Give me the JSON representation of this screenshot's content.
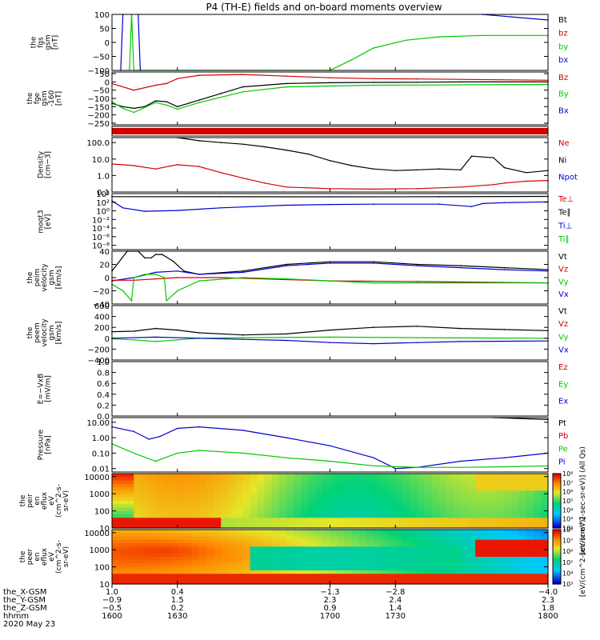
{
  "title": "P4 (TH-E) fields and on-board moments overview",
  "colors": {
    "black": "#000000",
    "red": "#d00000",
    "green": "#00c800",
    "blue": "#0000d0",
    "axis": "#000000"
  },
  "chart_data": [
    {
      "id": "fgs",
      "type": "line",
      "ylabel": [
        "the",
        "fgs",
        "gsm",
        "[nT]"
      ],
      "ylim": [
        -100,
        100
      ],
      "yscale": "linear",
      "yticks": [
        -100,
        -50,
        0,
        50,
        100
      ],
      "ytick_labels": [
        "−100",
        "−50",
        "0",
        "50",
        "100"
      ],
      "legend": [
        {
          "name": "Bt",
          "color": "black"
        },
        {
          "name": "bz",
          "color": "red"
        },
        {
          "name": "by",
          "color": "green"
        },
        {
          "name": "bx",
          "color": "blue"
        }
      ],
      "series": [
        {
          "name": "bx",
          "color": "blue",
          "x": [
            1604,
            1605,
            1606,
            1611,
            1612,
            1613,
            1750,
            1770,
            1800
          ],
          "y": [
            -100,
            100,
            null,
            null,
            100,
            -100,
            null,
            100,
            80
          ]
        },
        {
          "name": "by",
          "color": "green",
          "x": [
            1608,
            1609,
            1610,
            1700,
            1710,
            1720,
            1735,
            1750,
            1770,
            1800
          ],
          "y": [
            -100,
            100,
            -100,
            -100,
            -62,
            -20,
            8,
            20,
            25,
            25
          ]
        }
      ]
    },
    {
      "id": "fge",
      "type": "line",
      "ylabel": [
        "the",
        "fge",
        "gsm",
        "-160",
        "[nT]"
      ],
      "ylim": [
        -260,
        60
      ],
      "yscale": "linear",
      "yticks": [
        -250,
        -200,
        -150,
        -100,
        -50,
        0,
        50
      ],
      "ytick_labels": [
        "−250",
        "−200",
        "−150",
        "−100",
        "−50",
        "0",
        "50"
      ],
      "legend": [
        {
          "name": "Bz",
          "color": "red"
        },
        {
          "name": "By",
          "color": "green"
        },
        {
          "name": "Bx",
          "color": "blue"
        }
      ],
      "series": [
        {
          "name": "bt",
          "color": "black",
          "x": [
            1600,
            1605,
            1610,
            1615,
            1620,
            1625,
            1630,
            1640,
            1650,
            1660,
            1680,
            1700,
            1720,
            1740,
            1760,
            1800
          ],
          "y": [
            -130,
            -150,
            -160,
            -150,
            -115,
            -120,
            -150,
            -110,
            -70,
            -30,
            -10,
            -5,
            -3,
            -2,
            0,
            0
          ]
        },
        {
          "name": "Bz",
          "color": "red",
          "x": [
            1600,
            1610,
            1620,
            1625,
            1630,
            1640,
            1660,
            1680,
            1700,
            1720,
            1740,
            1800
          ],
          "y": [
            -10,
            -50,
            -20,
            -10,
            20,
            40,
            45,
            35,
            25,
            20,
            18,
            10
          ]
        },
        {
          "name": "By",
          "color": "green",
          "x": [
            1600,
            1605,
            1610,
            1615,
            1620,
            1625,
            1630,
            1640,
            1660,
            1680,
            1720,
            1800
          ],
          "y": [
            -120,
            -160,
            -185,
            -155,
            -125,
            -140,
            -165,
            -125,
            -60,
            -30,
            -20,
            -15
          ]
        }
      ]
    },
    {
      "id": "band",
      "type": "bar",
      "ylabel": [],
      "band_color": "red"
    },
    {
      "id": "density",
      "type": "line",
      "ylabel": [
        "Density",
        "[cm−3]"
      ],
      "ylim": [
        0.1,
        200
      ],
      "yscale": "log",
      "yticks": [
        0.1,
        1,
        10,
        100
      ],
      "ytick_labels": [
        "0.1",
        "1.0",
        "10.0",
        "100.0"
      ],
      "legend": [
        {
          "name": "Ne",
          "color": "red"
        },
        {
          "name": "Ni",
          "color": "black"
        },
        {
          "name": "Npot",
          "color": "blue"
        }
      ],
      "series": [
        {
          "name": "Ni",
          "color": "black",
          "x": [
            1630,
            1640,
            1650,
            1660,
            1670,
            1680,
            1690,
            1700,
            1710,
            1720,
            1730,
            1740,
            1750,
            1760,
            1765,
            1775,
            1780,
            1790,
            1800
          ],
          "y": [
            200,
            130,
            100,
            80,
            55,
            35,
            20,
            8,
            4,
            2.5,
            2,
            2.2,
            2.5,
            2.2,
            15,
            12,
            3,
            1.5,
            2
          ]
        },
        {
          "name": "Ne",
          "color": "red",
          "x": [
            1600,
            1610,
            1620,
            1630,
            1640,
            1650,
            1660,
            1670,
            1680,
            1700,
            1720,
            1740,
            1760,
            1775,
            1780,
            1790,
            1800
          ],
          "y": [
            5,
            4,
            2.5,
            4.5,
            3.5,
            1.5,
            0.7,
            0.35,
            0.2,
            0.16,
            0.15,
            0.16,
            0.2,
            0.28,
            0.35,
            0.45,
            0.5
          ]
        }
      ]
    },
    {
      "id": "temp",
      "type": "line",
      "ylabel": [
        "moqt3",
        "[eV]"
      ],
      "ylim": [
        1e-09,
        10000.0
      ],
      "yscale": "log",
      "yticks": [
        1e-08,
        1e-06,
        0.0001,
        0.01,
        1,
        100,
        10000
      ],
      "ytick_labels": [
        "10⁻⁸",
        "10⁻⁶",
        "10⁻⁴",
        "10⁻²",
        "10⁰",
        "10²",
        "10⁴"
      ],
      "legend": [
        {
          "name": "Te⊥",
          "color": "red"
        },
        {
          "name": "Te∥",
          "color": "black"
        },
        {
          "name": "Ti⊥",
          "color": "blue"
        },
        {
          "name": "Ti∥",
          "color": "green"
        }
      ],
      "series": [
        {
          "name": "Te",
          "color": "black",
          "x": [
            1600,
            1650,
            1700,
            1750,
            1800
          ],
          "y": [
            2000,
            1900,
            1800,
            1900,
            2200
          ]
        },
        {
          "name": "Ti",
          "color": "blue",
          "x": [
            1600,
            1605,
            1615,
            1630,
            1650,
            1680,
            1700,
            1720,
            1750,
            1765,
            1770,
            1780,
            1800
          ],
          "y": [
            200,
            5,
            0.8,
            1.2,
            5,
            20,
            30,
            35,
            35,
            10,
            50,
            80,
            120
          ]
        }
      ]
    },
    {
      "id": "peim",
      "type": "line",
      "ylabel": [
        "the",
        "peim",
        "velocity",
        "gsm",
        "[km/s]"
      ],
      "ylim": [
        -40,
        40
      ],
      "yscale": "linear",
      "yticks": [
        -40,
        -20,
        0,
        20,
        40
      ],
      "ytick_labels": [
        "−40",
        "−20",
        "0",
        "20",
        "40"
      ],
      "legend": [
        {
          "name": "Vt",
          "color": "black"
        },
        {
          "name": "Vz",
          "color": "red"
        },
        {
          "name": "Vy",
          "color": "green"
        },
        {
          "name": "Vx",
          "color": "blue"
        }
      ],
      "series": [
        {
          "name": "Vt",
          "color": "black",
          "x": [
            1600,
            1607,
            1612,
            1615,
            1618,
            1620,
            1623,
            1628,
            1633,
            1640,
            1660,
            1680,
            1700,
            1720,
            1740,
            1760,
            1780,
            1800
          ],
          "y": [
            10,
            40,
            40,
            30,
            30,
            35,
            35,
            25,
            10,
            5,
            10,
            20,
            24,
            24,
            20,
            18,
            15,
            12
          ]
        },
        {
          "name": "Vx",
          "color": "blue",
          "x": [
            1600,
            1610,
            1620,
            1630,
            1640,
            1660,
            1680,
            1700,
            1720,
            1740,
            1760,
            1780,
            1800
          ],
          "y": [
            -5,
            0,
            8,
            10,
            5,
            8,
            18,
            22,
            22,
            18,
            15,
            12,
            10
          ]
        },
        {
          "name": "Vz",
          "color": "red",
          "x": [
            1600,
            1610,
            1620,
            1630,
            1650,
            1680,
            1700,
            1740,
            1800
          ],
          "y": [
            -4,
            -4,
            -2,
            0,
            0,
            -3,
            -5,
            -6,
            -8
          ]
        },
        {
          "name": "Vy",
          "color": "green",
          "x": [
            1600,
            1605,
            1609,
            1610,
            1615,
            1620,
            1624,
            1625,
            1630,
            1640,
            1660,
            1680,
            1700,
            1720,
            1760,
            1800
          ],
          "y": [
            -10,
            -20,
            -35,
            0,
            5,
            5,
            0,
            -35,
            -20,
            -5,
            0,
            -2,
            -5,
            -8,
            -8,
            -8
          ]
        }
      ]
    },
    {
      "id": "peem",
      "type": "line",
      "ylabel": [
        "the",
        "peem",
        "velocity",
        "gsm",
        "[km/s]"
      ],
      "ylim": [
        -400,
        600
      ],
      "yscale": "linear",
      "yticks": [
        -400,
        -200,
        0,
        200,
        400,
        600
      ],
      "ytick_labels": [
        "−400",
        "−200",
        "0",
        "200",
        "400",
        "600"
      ],
      "legend": [
        {
          "name": "Vt",
          "color": "black"
        },
        {
          "name": "Vz",
          "color": "red"
        },
        {
          "name": "Vy",
          "color": "green"
        },
        {
          "name": "Vx",
          "color": "blue"
        }
      ],
      "series": [
        {
          "name": "Vt",
          "color": "black",
          "x": [
            1600,
            1610,
            1620,
            1630,
            1640,
            1660,
            1680,
            1700,
            1720,
            1740,
            1760,
            1780,
            1800
          ],
          "y": [
            120,
            130,
            180,
            150,
            100,
            60,
            80,
            150,
            200,
            220,
            180,
            160,
            140
          ]
        },
        {
          "name": "Vy",
          "color": "green",
          "x": [
            1600,
            1610,
            1620,
            1630,
            1640,
            1660,
            1700,
            1740,
            1800
          ],
          "y": [
            -10,
            -30,
            -60,
            -30,
            0,
            10,
            20,
            10,
            0
          ]
        },
        {
          "name": "Vx",
          "color": "blue",
          "x": [
            1600,
            1620,
            1640,
            1660,
            1680,
            1700,
            1720,
            1740,
            1760,
            1800
          ],
          "y": [
            0,
            20,
            0,
            -20,
            -40,
            -80,
            -100,
            -80,
            -60,
            -50
          ]
        }
      ]
    },
    {
      "id": "efield",
      "type": "line",
      "ylabel": [
        "E=−VxB",
        "[mV/m]"
      ],
      "ylim": [
        0,
        1
      ],
      "yscale": "linear",
      "yticks": [
        0,
        0.2,
        0.4,
        0.6,
        0.8,
        1.0
      ],
      "ytick_labels": [
        "0.0",
        "0.2",
        "0.4",
        "0.6",
        "0.8",
        "1.0"
      ],
      "legend": [
        {
          "name": "Ez",
          "color": "red"
        },
        {
          "name": "Ey",
          "color": "green"
        },
        {
          "name": "Ex",
          "color": "blue"
        }
      ],
      "series": []
    },
    {
      "id": "pressure",
      "type": "line",
      "ylabel": [
        "Pressure",
        "[nPa]"
      ],
      "ylim": [
        0.006,
        20
      ],
      "yscale": "log",
      "yticks": [
        0.01,
        0.1,
        1,
        10
      ],
      "ytick_labels": [
        "0.01",
        "0.10",
        "1.00",
        "10.00"
      ],
      "legend": [
        {
          "name": "Pt",
          "color": "black"
        },
        {
          "name": "Pb",
          "color": "red"
        },
        {
          "name": "Pe",
          "color": "green"
        },
        {
          "name": "Pi",
          "color": "blue"
        }
      ],
      "series": [
        {
          "name": "Pt",
          "color": "black",
          "x": [
            1775,
            1800
          ],
          "y": [
            20,
            15
          ]
        },
        {
          "name": "Pi",
          "color": "blue",
          "x": [
            1600,
            1610,
            1617,
            1622,
            1630,
            1640,
            1660,
            1680,
            1700,
            1720,
            1730,
            1740,
            1760,
            1780,
            1800
          ],
          "y": [
            5,
            2.5,
            0.8,
            1.2,
            4,
            5,
            3,
            1,
            0.3,
            0.05,
            0.01,
            0.012,
            0.03,
            0.05,
            0.1
          ]
        },
        {
          "name": "Pe",
          "color": "green",
          "x": [
            1600,
            1610,
            1620,
            1630,
            1640,
            1660,
            1680,
            1700,
            1720,
            1740,
            1760,
            1780,
            1800
          ],
          "y": [
            0.4,
            0.1,
            0.03,
            0.1,
            0.15,
            0.1,
            0.05,
            0.03,
            0.015,
            0.012,
            0.012,
            0.013,
            0.015
          ]
        }
      ]
    },
    {
      "id": "peir",
      "type": "heatmap",
      "ylabel": [
        "the",
        "peir",
        "en",
        "eflux",
        "eV",
        "(cm^2-s-",
        "sr-eV)"
      ],
      "ylim": [
        10,
        15000
      ],
      "yscale": "log",
      "yticks": [
        10,
        100,
        1000,
        10000
      ],
      "ytick_labels": [
        "10",
        "100",
        "1000",
        "10000"
      ],
      "colorbar_label": "[eV/(cm^2-sec-sr-eV)] (All Qs)",
      "colorbar_ticks": [
        "10²",
        "10³",
        "10⁴",
        "10⁵",
        "10⁶",
        "10⁷",
        "10⁸"
      ]
    },
    {
      "id": "peer",
      "type": "heatmap",
      "ylabel": [
        "the",
        "peer",
        "en",
        "eflux",
        "eV",
        "(cm^2-s-",
        "sr-eV)"
      ],
      "ylim": [
        10,
        15000
      ],
      "yscale": "log",
      "yticks": [
        10,
        100,
        1000,
        10000
      ],
      "ytick_labels": [
        "10",
        "100",
        "1000",
        "10000"
      ],
      "colorbar_label": "[eV/(cm^2-sec-sr-eV)]",
      "colorbar_ticks": [
        "10³",
        "10⁴",
        "10⁵",
        "10⁶",
        "10⁷",
        "10⁸"
      ]
    }
  ],
  "xaxis": {
    "rows": [
      {
        "label": "the_X-GSM",
        "values": [
          "1.0",
          "0.4",
          "−1.3",
          "−2.8",
          "−4.0"
        ]
      },
      {
        "label": "the_Y-GSM",
        "values": [
          "−0.9",
          "1.5",
          "2.3",
          "2.4",
          "2.3"
        ]
      },
      {
        "label": "the_Z-GSM",
        "values": [
          "−0.5",
          "0.2",
          "0.9",
          "1.4",
          "1.8"
        ]
      },
      {
        "label": "hhmm",
        "values": [
          "1600",
          "1630",
          "1700",
          "1730",
          "1800"
        ]
      }
    ],
    "date": "2020 May 23",
    "xmin": 1600,
    "xmax": 1800,
    "ticks": [
      1600,
      1630,
      1700,
      1730,
      1800
    ]
  }
}
